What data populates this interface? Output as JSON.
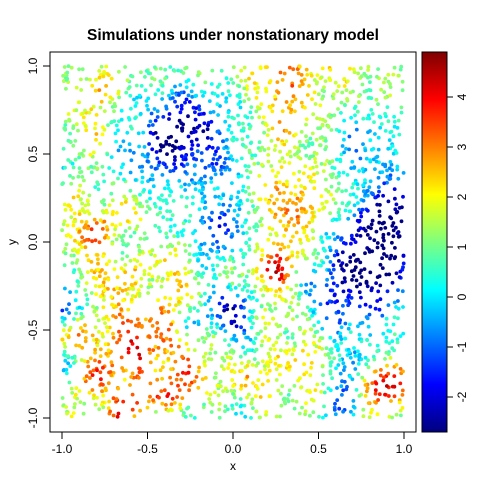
{
  "chart_data": {
    "type": "scatter",
    "title": "Simulations under nonstationary model",
    "xlabel": "x",
    "ylabel": "y",
    "xlim": [
      -1.0,
      1.0
    ],
    "ylim": [
      -1.0,
      1.0
    ],
    "x_ticks": [
      "-1.0",
      "-0.5",
      "0.0",
      "0.5",
      "1.0"
    ],
    "y_ticks": [
      "-1.0",
      "-0.5",
      "0.0",
      "0.5",
      "1.0"
    ],
    "grid": false,
    "n_points": 3000,
    "colorbar": {
      "colormap": "jet",
      "range": [
        -2.7,
        4.9
      ],
      "ticks": [
        "-2",
        "-1",
        "0",
        "1",
        "2",
        "3",
        "4"
      ],
      "stops": [
        "#00007f",
        "#0000ff",
        "#007fff",
        "#00ffff",
        "#7fff7f",
        "#ffff00",
        "#ff7f00",
        "#ff0000",
        "#7f0000"
      ]
    },
    "field_summary": [
      {
        "region": "upper-left cluster (x~-0.8, y~0.8)",
        "value": 1.8
      },
      {
        "region": "blue patch (x~-0.35, y~0.6)",
        "value": -1.9
      },
      {
        "region": "orange patch (x~0.35, y~0.2)",
        "value": 2.9
      },
      {
        "region": "red spot (x~0.25, y~-0.18)",
        "value": 3.9
      },
      {
        "region": "right blue band (x~0.8, y~-0.1)",
        "value": -2.3
      },
      {
        "region": "lower-left red (x~-0.6, y~-0.5)",
        "value": 3.3
      },
      {
        "region": "bottom-right red (x~0.9, y~-0.85)",
        "value": 3.7
      }
    ]
  }
}
